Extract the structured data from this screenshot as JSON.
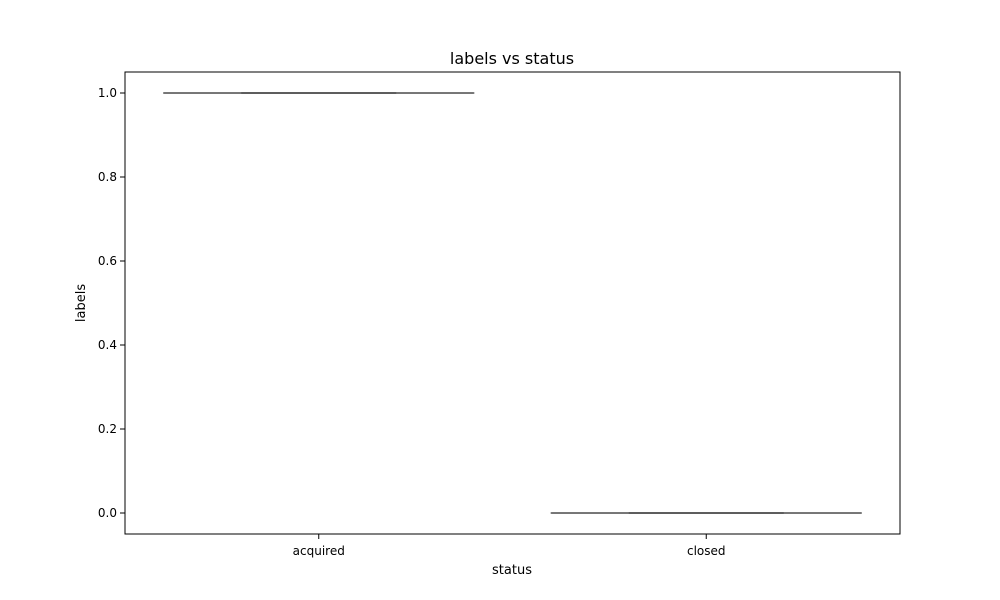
{
  "chart_data": {
    "type": "box",
    "title": "labels vs status",
    "xlabel": "status",
    "ylabel": "labels",
    "categories": [
      "acquired",
      "closed"
    ],
    "boxes": [
      {
        "category": "acquired",
        "min": 1.0,
        "q1": 1.0,
        "median": 1.0,
        "q3": 1.0,
        "max": 1.0
      },
      {
        "category": "closed",
        "min": 0.0,
        "q1": 0.0,
        "median": 0.0,
        "q3": 0.0,
        "max": 0.0
      }
    ],
    "ylim": [
      -0.05,
      1.05
    ],
    "yticks": [
      0.0,
      0.2,
      0.4,
      0.6,
      0.8,
      1.0
    ],
    "ytick_labels": [
      "0.0",
      "0.2",
      "0.4",
      "0.6",
      "0.8",
      "1.0"
    ],
    "grid": false,
    "colors": {
      "line": "#3f3f3f",
      "axis": "#000000"
    }
  }
}
